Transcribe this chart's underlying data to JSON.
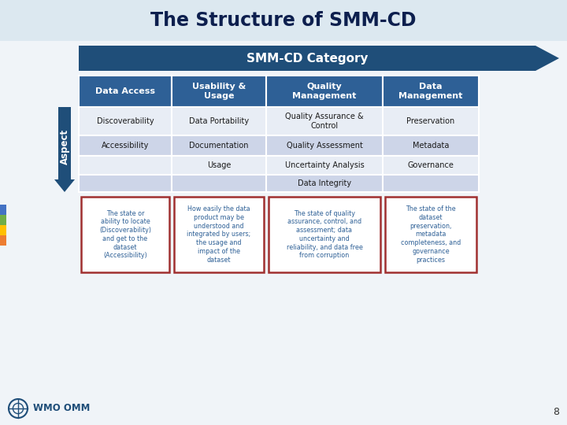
{
  "title": "The Structure of SMM-CD",
  "title_color": "#0d1f4e",
  "bg_top": "#dce8f0",
  "bg_main": "#ffffff",
  "arrow_color": "#1f4e79",
  "arrow_text": "SMM-CD Category",
  "arrow_text_color": "#ffffff",
  "col_headers": [
    "Data Access",
    "Usability &\nUsage",
    "Quality\nManagement",
    "Data\nManagement"
  ],
  "col_header_bg": "#2e6096",
  "col_header_text": "#ffffff",
  "table_bg_light": "#cdd5e8",
  "table_bg_white": "#e8edf5",
  "table_text_color": "#1a1a1a",
  "table_border_color": "#ffffff",
  "rows": [
    [
      "Discoverability",
      "Data Portability",
      "Quality Assurance &\nControl",
      "Preservation"
    ],
    [
      "Accessibility",
      "Documentation",
      "Quality Assessment",
      "Metadata"
    ],
    [
      "",
      "Usage",
      "Uncertainty Analysis",
      "Governance"
    ],
    [
      "",
      "",
      "Data Integrity",
      ""
    ]
  ],
  "aspect_arrow_color": "#1f4e79",
  "aspect_text": "Aspect",
  "desc_box_border": "#a03030",
  "desc_box_bg": "#ffffff",
  "desc_text_color": "#2e6096",
  "desc_texts": [
    "The state or\nability to locate\n(Discoverability)\nand get to the\ndataset\n(Accessibility)",
    "How easily the data\nproduct may be\nunderstood and\nintegrated by users;\nthe usage and\nimpact of the\ndataset",
    "The state of quality\nassurance, control, and\nassessment; data\nuncertainty and\nreliability, and data free\nfrom corruption",
    "The state of the\ndataset\npreservation,\nmetadata\ncompleteness, and\ngovernance\npractices"
  ],
  "sidebar_colors": [
    "#4472c4",
    "#70ad47",
    "#ffc000",
    "#ed7d31"
  ],
  "page_number": "8",
  "wmo_text": "WMO OMM"
}
